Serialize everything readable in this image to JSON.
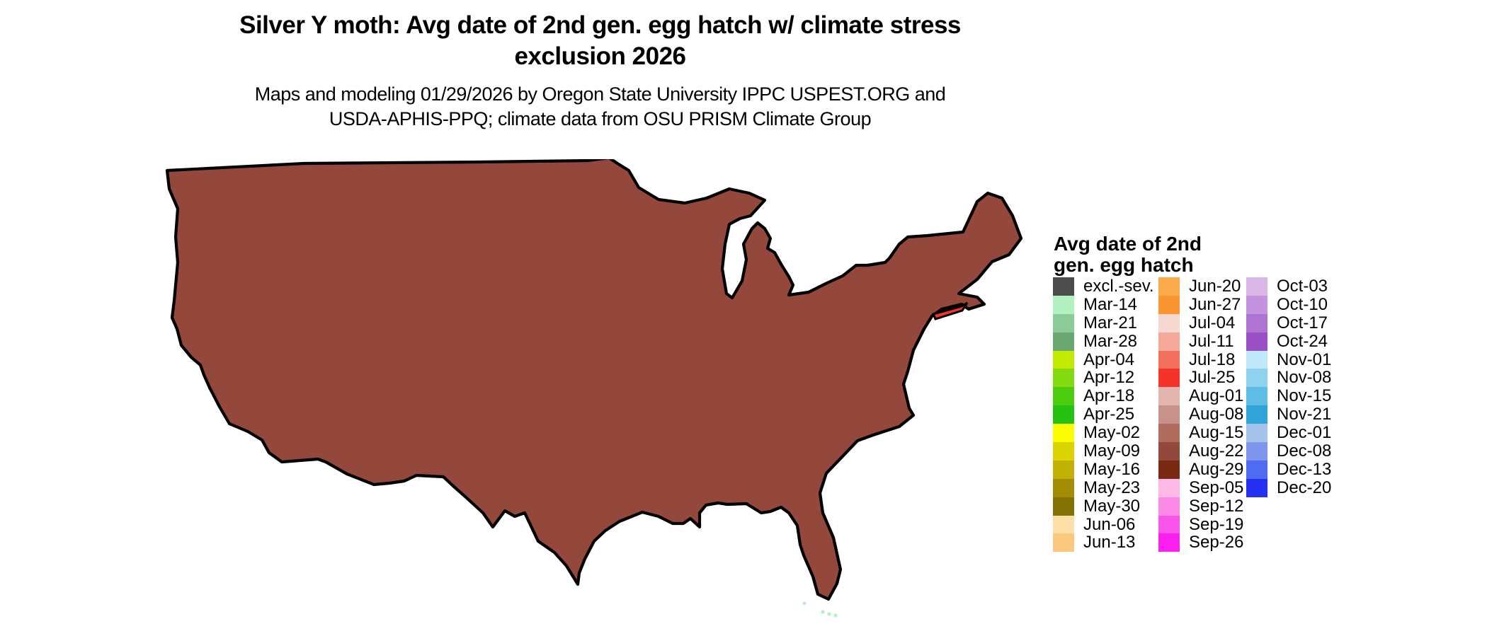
{
  "title": {
    "line1": "Silver Y moth: Avg date of 2nd gen. egg hatch w/ climate stress",
    "line2": "exclusion 2026"
  },
  "subtitle": {
    "line1": "Maps and modeling 01/29/2026 by Oregon State University IPPC USPEST.ORG and",
    "line2": "USDA-APHIS-PPQ; climate data from OSU PRISM Climate Group"
  },
  "legend": {
    "title_line1": "Avg date of 2nd",
    "title_line2": "gen. egg hatch",
    "columns": [
      {
        "entries": [
          {
            "label": "excl.-sev.",
            "color": "#4d4d4d"
          },
          {
            "label": "Mar-14",
            "color": "#b4f1c0"
          },
          {
            "label": "Mar-21",
            "color": "#8ecb9b"
          },
          {
            "label": "Mar-28",
            "color": "#6aa771"
          },
          {
            "label": "Apr-04",
            "color": "#c3ea02"
          },
          {
            "label": "Apr-12",
            "color": "#84dc10"
          },
          {
            "label": "Apr-18",
            "color": "#4ccd0e"
          },
          {
            "label": "Apr-25",
            "color": "#27c114"
          },
          {
            "label": "May-02",
            "color": "#fdfd02"
          },
          {
            "label": "May-09",
            "color": "#dcd302"
          },
          {
            "label": "May-16",
            "color": "#c0b105"
          },
          {
            "label": "May-23",
            "color": "#a28d04"
          },
          {
            "label": "May-30",
            "color": "#847204"
          },
          {
            "label": "Jun-06",
            "color": "#fbdfa7"
          },
          {
            "label": "Jun-13",
            "color": "#fac87e"
          }
        ]
      },
      {
        "entries": [
          {
            "label": "Jun-20",
            "color": "#fbaa4d"
          },
          {
            "label": "Jun-27",
            "color": "#fa9632"
          },
          {
            "label": "Jul-04",
            "color": "#f6d8d0"
          },
          {
            "label": "Jul-11",
            "color": "#f4a99a"
          },
          {
            "label": "Jul-18",
            "color": "#f3705f"
          },
          {
            "label": "Jul-25",
            "color": "#f5332a"
          },
          {
            "label": "Aug-01",
            "color": "#e2b6ae"
          },
          {
            "label": "Aug-08",
            "color": "#c69289"
          },
          {
            "label": "Aug-15",
            "color": "#b06c5c"
          },
          {
            "label": "Aug-22",
            "color": "#94473b"
          },
          {
            "label": "Aug-29",
            "color": "#7a2a12"
          },
          {
            "label": "Sep-05",
            "color": "#fcb9e3"
          },
          {
            "label": "Sep-12",
            "color": "#fb8ae6"
          },
          {
            "label": "Sep-19",
            "color": "#fa55ea"
          },
          {
            "label": "Sep-26",
            "color": "#fb20f0"
          }
        ]
      },
      {
        "entries": [
          {
            "label": "Oct-03",
            "color": "#d9b8e8"
          },
          {
            "label": "Oct-10",
            "color": "#c394dd"
          },
          {
            "label": "Oct-17",
            "color": "#ad74d2"
          },
          {
            "label": "Oct-24",
            "color": "#9b4fc4"
          },
          {
            "label": "Nov-01",
            "color": "#bfe9f9"
          },
          {
            "label": "Nov-08",
            "color": "#8fd2ee"
          },
          {
            "label": "Nov-15",
            "color": "#5fbce4"
          },
          {
            "label": "Nov-21",
            "color": "#31a5d8"
          },
          {
            "label": "Dec-01",
            "color": "#a5c3e8"
          },
          {
            "label": "Dec-08",
            "color": "#7e96ed"
          },
          {
            "label": "Dec-13",
            "color": "#4f6cf0"
          },
          {
            "label": "Dec-20",
            "color": "#2530f0"
          }
        ]
      }
    ]
  },
  "map": {
    "water_background": "#ffffff",
    "excluded_area": "#ffffff",
    "state_border_color": "#000000"
  }
}
